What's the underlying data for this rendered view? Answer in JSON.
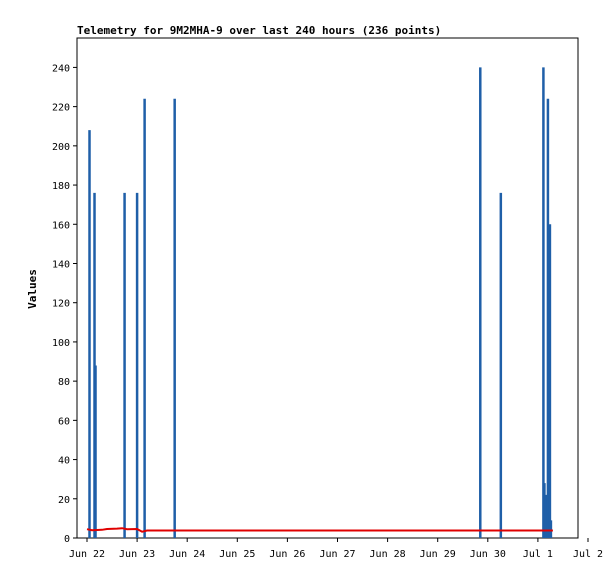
{
  "chart_data": {
    "type": "bar",
    "title": "Telemetry for 9M2MHA-9 over last 240 hours (236 points)",
    "xlabel": "",
    "ylabel": "Values",
    "xlim": [
      0,
      10
    ],
    "ylim": [
      0,
      255
    ],
    "x_ticks": [
      {
        "x": 0,
        "label": "Jun 22"
      },
      {
        "x": 1,
        "label": "Jun 23"
      },
      {
        "x": 2,
        "label": "Jun 24"
      },
      {
        "x": 3,
        "label": "Jun 25"
      },
      {
        "x": 4,
        "label": "Jun 26"
      },
      {
        "x": 5,
        "label": "Jun 27"
      },
      {
        "x": 6,
        "label": "Jun 28"
      },
      {
        "x": 7,
        "label": "Jun 29"
      },
      {
        "x": 8,
        "label": "Jun 30"
      },
      {
        "x": 9,
        "label": "Jul 1"
      },
      {
        "x": 10,
        "label": "Jul 2"
      }
    ],
    "y_ticks": [
      0,
      20,
      40,
      60,
      80,
      100,
      120,
      140,
      160,
      180,
      200,
      220,
      240
    ],
    "series": [
      {
        "color": "#1f5fa8",
        "kind": "spikes",
        "points": [
          {
            "x": 0.05,
            "y": 208
          },
          {
            "x": 0.15,
            "y": 176
          },
          {
            "x": 0.17,
            "y": 88
          },
          {
            "x": 0.75,
            "y": 176
          },
          {
            "x": 1.0,
            "y": 176
          },
          {
            "x": 1.15,
            "y": 224
          },
          {
            "x": 1.75,
            "y": 224
          },
          {
            "x": 7.85,
            "y": 240
          },
          {
            "x": 8.26,
            "y": 176
          },
          {
            "x": 9.11,
            "y": 240
          },
          {
            "x": 9.13,
            "y": 28
          },
          {
            "x": 9.16,
            "y": 22
          },
          {
            "x": 9.2,
            "y": 224
          },
          {
            "x": 9.22,
            "y": 15
          },
          {
            "x": 9.24,
            "y": 160
          },
          {
            "x": 9.26,
            "y": 9
          }
        ]
      },
      {
        "color": "#e00000",
        "kind": "line",
        "points": [
          {
            "x": 0.0,
            "y": 4.5
          },
          {
            "x": 0.1,
            "y": 4.0
          },
          {
            "x": 0.3,
            "y": 4.2
          },
          {
            "x": 0.4,
            "y": 4.6
          },
          {
            "x": 0.6,
            "y": 4.8
          },
          {
            "x": 0.7,
            "y": 5.0
          },
          {
            "x": 0.8,
            "y": 4.5
          },
          {
            "x": 1.0,
            "y": 4.6
          },
          {
            "x": 1.1,
            "y": 3.2
          },
          {
            "x": 1.2,
            "y": 3.8
          },
          {
            "x": 1.75,
            "y": 3.8
          },
          {
            "x": 4.0,
            "y": 3.8
          },
          {
            "x": 7.85,
            "y": 3.8
          },
          {
            "x": 8.3,
            "y": 3.8
          },
          {
            "x": 9.1,
            "y": 3.8
          },
          {
            "x": 9.3,
            "y": 3.8
          }
        ]
      }
    ]
  }
}
